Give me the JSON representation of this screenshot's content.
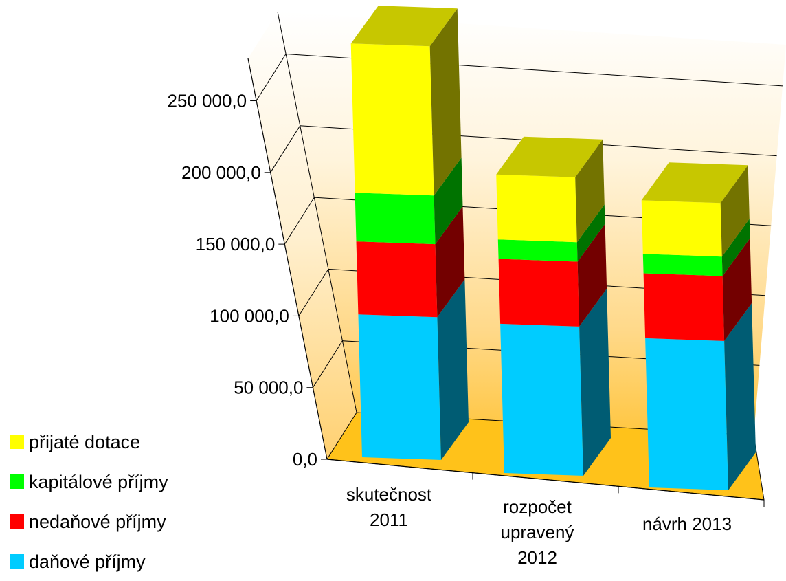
{
  "chart_data": {
    "type": "bar",
    "stacked": true,
    "three_d": true,
    "title": "",
    "xlabel": "",
    "ylabel": "",
    "ylim": [
      0,
      250000
    ],
    "y_ticks": [
      0,
      50000,
      100000,
      150000,
      200000,
      250000
    ],
    "y_tick_labels": [
      "0,0",
      "50 000,0",
      "100 000,0",
      "150 000,0",
      "200 000,0",
      "250 000,0"
    ],
    "categories": [
      "skutečnost 2011",
      "rozpočet upravený 2012",
      "návrh 2013"
    ],
    "category_label_lines": [
      [
        "skutečnost",
        "2011"
      ],
      [
        "rozpočet",
        "upravený",
        "2012"
      ],
      [
        "návrh 2013"
      ]
    ],
    "series": [
      {
        "name": "daňové příjmy",
        "color": "#00CCFF",
        "values": [
          88000,
          92000,
          92000
        ]
      },
      {
        "name": "nedaňové příjmy",
        "color": "#FF0000",
        "values": [
          45000,
          40000,
          40000
        ]
      },
      {
        "name": "kapitálové příjmy",
        "color": "#00FF00",
        "values": [
          30000,
          12000,
          12000
        ]
      },
      {
        "name": "přijaté dotace",
        "color": "#FFFF00",
        "values": [
          92000,
          40000,
          33000
        ]
      }
    ],
    "legend_order": [
      "přijaté dotace",
      "kapitálové příjmy",
      "nedaňové příjmy",
      "daňové příjmy"
    ],
    "legend_position": "bottom-left",
    "grid": true,
    "background": "gradient-gold"
  }
}
